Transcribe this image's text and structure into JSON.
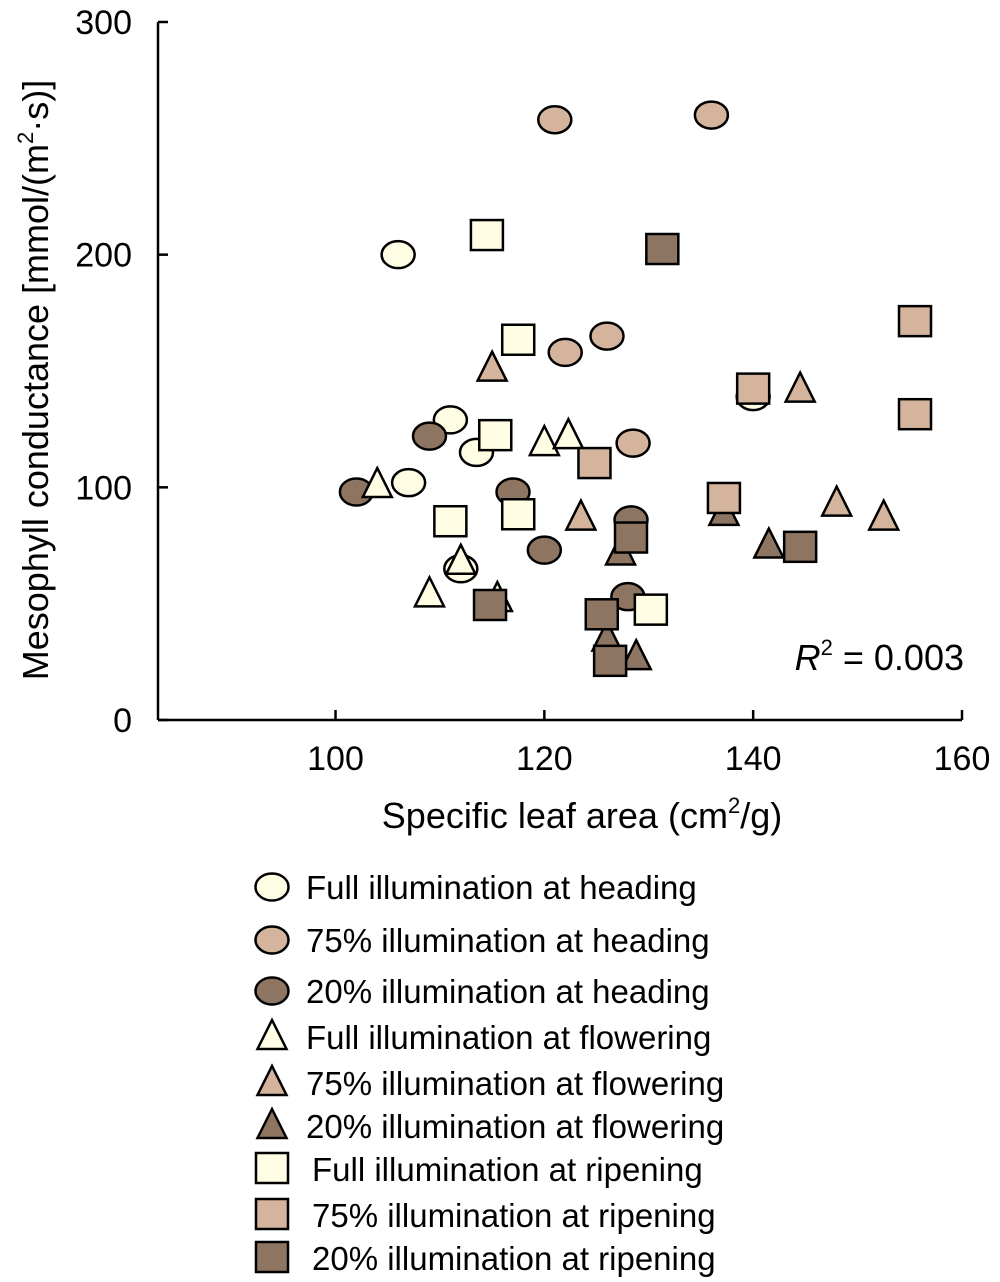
{
  "chart_data": {
    "type": "scatter",
    "xlabel": "Specific leaf area (cm",
    "xlabel_sup": "2",
    "xlabel_tail": "/g)",
    "ylabel": "Mesophyll conductance [mmol/(m",
    "ylabel_sup": "2",
    "ylabel_tail": "·s)]",
    "xlim": [
      83,
      160
    ],
    "ylim": [
      0,
      300
    ],
    "x_ticks": [
      100,
      120,
      140,
      160
    ],
    "y_ticks": [
      0,
      100,
      200,
      300
    ],
    "grid": false,
    "annotation": {
      "label": "R",
      "sup": "2",
      "value": " = 0.003"
    },
    "legend_position": "bottom",
    "series": [
      {
        "name": "Full illumination at heading",
        "marker": "circle",
        "color": "#FFFDE3",
        "points": [
          [
            106,
            200
          ],
          [
            111,
            129
          ],
          [
            113.5,
            115
          ],
          [
            107,
            102
          ],
          [
            112,
            65
          ],
          [
            140,
            139
          ]
        ]
      },
      {
        "name": "75% illumination at heading",
        "marker": "circle",
        "color": "#D4B49C",
        "points": [
          [
            121,
            258
          ],
          [
            136,
            260
          ],
          [
            122,
            158
          ],
          [
            126,
            165
          ],
          [
            128.5,
            119
          ]
        ]
      },
      {
        "name": "20% illumination at heading",
        "marker": "circle",
        "color": "#8E7562",
        "points": [
          [
            102,
            98
          ],
          [
            109,
            122
          ],
          [
            117,
            98
          ],
          [
            120,
            73
          ],
          [
            128.3,
            86
          ],
          [
            128,
            53
          ]
        ]
      },
      {
        "name": "Full illumination at flowering",
        "marker": "triangle",
        "color": "#FFFDE3",
        "points": [
          [
            104,
            101
          ],
          [
            112,
            68
          ],
          [
            109,
            54
          ],
          [
            115.5,
            52
          ],
          [
            120,
            119
          ],
          [
            122.3,
            122
          ]
        ]
      },
      {
        "name": "75% illumination at flowering",
        "marker": "triangle",
        "color": "#D4B49C",
        "points": [
          [
            115,
            151
          ],
          [
            123.5,
            87
          ],
          [
            144.5,
            142
          ],
          [
            148,
            93
          ],
          [
            152.5,
            87
          ]
        ]
      },
      {
        "name": "20% illumination at flowering",
        "marker": "triangle",
        "color": "#8E7562",
        "points": [
          [
            127.3,
            72
          ],
          [
            126,
            35
          ],
          [
            128.8,
            27
          ],
          [
            137.2,
            89
          ],
          [
            141.5,
            75
          ]
        ]
      },
      {
        "name": "Full illumination at ripening",
        "marker": "square",
        "color": "#FFFDE3",
        "points": [
          [
            114.5,
            208
          ],
          [
            117.5,
            163
          ],
          [
            115.3,
            122
          ],
          [
            111,
            85
          ],
          [
            117.5,
            88
          ],
          [
            130.2,
            47
          ]
        ]
      },
      {
        "name": "75% illumination at ripening",
        "marker": "square",
        "color": "#D4B49C",
        "points": [
          [
            124.8,
            110
          ],
          [
            137.2,
            95
          ],
          [
            140,
            142
          ],
          [
            155.5,
            171
          ],
          [
            155.5,
            131
          ]
        ]
      },
      {
        "name": "20% illumination at ripening",
        "marker": "square",
        "color": "#8E7562",
        "points": [
          [
            131.3,
            202
          ],
          [
            128.3,
            78
          ],
          [
            144.5,
            74
          ],
          [
            114.8,
            49
          ],
          [
            125.5,
            45
          ],
          [
            126.3,
            25
          ]
        ]
      }
    ]
  }
}
